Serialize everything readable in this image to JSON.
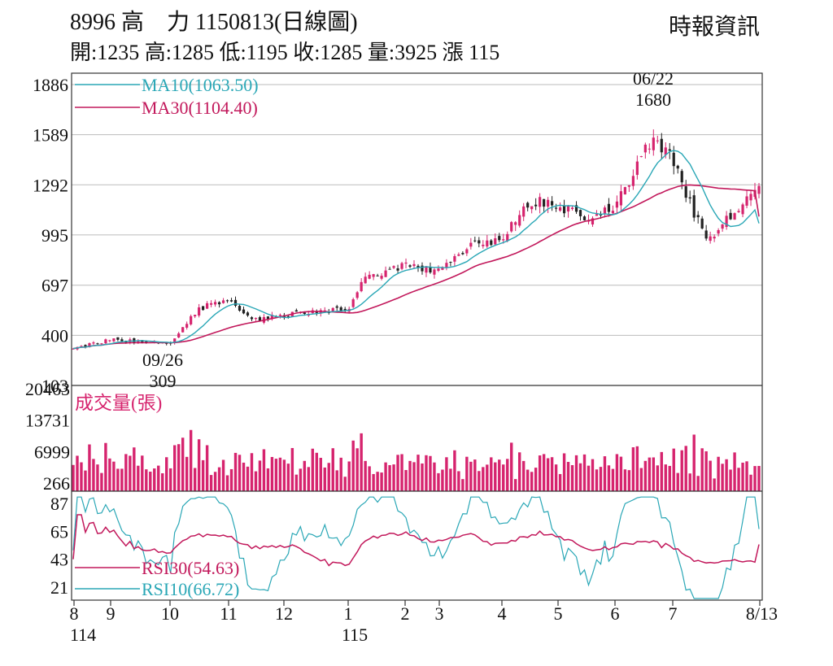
{
  "header": {
    "title": "8996 高　力 1150813(日線圖)",
    "source": "時報資訊",
    "ohlc": "開:1235 高:1285 低:1195 收:1285 量:3925 漲 115"
  },
  "colors": {
    "up": "#d6246e",
    "down": "#222222",
    "ma10": "#2aa7b6",
    "ma30": "#c2185b",
    "volume": "#d6246e",
    "rsi30": "#c2185b",
    "rsi10": "#2aa7b6",
    "grid": "#bbbbbb",
    "frame": "#333333"
  },
  "chart_data": [
    {
      "type": "candlestick",
      "panel": "price",
      "yticks": [
        1886,
        1589,
        1292,
        995,
        697,
        400,
        103
      ],
      "ylim": [
        103,
        1886
      ],
      "legend": [
        {
          "name": "MA10(1063.50)",
          "color": "#2aa7b6"
        },
        {
          "name": "MA30(1104.40)",
          "color": "#c2185b"
        }
      ],
      "annotations": [
        {
          "date_label": "06/22",
          "value_label": "1680",
          "note": "high"
        },
        {
          "date_label": "09/26",
          "value_label": "309",
          "note": "low"
        }
      ],
      "close_anchors": [
        {
          "month": "8",
          "close": 330
        },
        {
          "month": "9",
          "close": 372
        },
        {
          "month": "10",
          "close": 355
        },
        {
          "month": "10.5",
          "close": 560
        },
        {
          "month": "11",
          "close": 610
        },
        {
          "month": "11.5",
          "close": 490
        },
        {
          "month": "12",
          "close": 520
        },
        {
          "month": "1",
          "close": 560
        },
        {
          "month": "1.5",
          "close": 740
        },
        {
          "month": "2",
          "close": 820
        },
        {
          "month": "3",
          "close": 780
        },
        {
          "month": "3.5",
          "close": 930
        },
        {
          "month": "4",
          "close": 960
        },
        {
          "month": "4.5",
          "close": 1200
        },
        {
          "month": "5",
          "close": 1160
        },
        {
          "month": "5.5",
          "close": 1090
        },
        {
          "month": "6",
          "close": 1150
        },
        {
          "month": "6.5",
          "close": 1560
        },
        {
          "month": "7",
          "close": 1450
        },
        {
          "month": "7.5",
          "close": 950
        },
        {
          "month": "8/13",
          "close": 1285
        }
      ],
      "ma10_last": 1063.5,
      "ma30_last": 1104.4,
      "last": {
        "open": 1235,
        "high": 1285,
        "low": 1195,
        "close": 1285
      }
    },
    {
      "type": "bar",
      "panel": "volume",
      "title": "成交量(張)",
      "yticks": [
        20463,
        13731,
        6999,
        266
      ],
      "ylim": [
        266,
        20463
      ],
      "last_volume": 3925
    },
    {
      "type": "line",
      "panel": "rsi",
      "yticks": [
        87,
        65,
        43,
        21
      ],
      "ylim": [
        21,
        87
      ],
      "series": [
        {
          "name": "RSI30(54.63)",
          "last": 54.63,
          "color": "#c2185b"
        },
        {
          "name": "RSI10(66.72)",
          "last": 66.72,
          "color": "#2aa7b6"
        }
      ]
    }
  ],
  "xaxis": {
    "months": [
      "8",
      "9",
      "10",
      "11",
      "12",
      "1",
      "2",
      "3",
      "4",
      "5",
      "6",
      "7",
      "8/13"
    ],
    "years": [
      "114",
      "115"
    ]
  }
}
